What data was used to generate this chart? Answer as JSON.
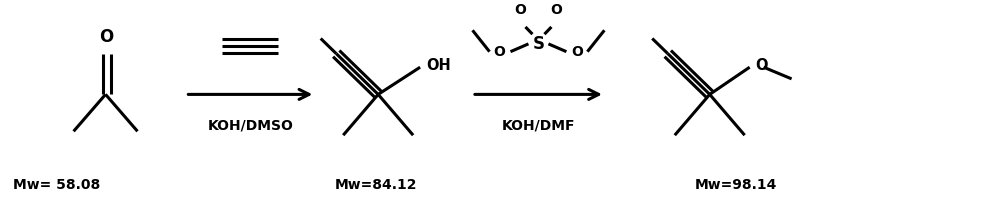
{
  "bg_color": "#ffffff",
  "text_color": "#000000",
  "mw1": "Mw= 58.08",
  "mw2": "Mw=84.12",
  "mw3": "Mw=98.14",
  "reagent1": "KOH/DMSO",
  "reagent2": "KOH/DMF",
  "line_width": 2.2,
  "font_size": 10,
  "fig_width": 10.0,
  "fig_height": 2.0,
  "dpi": 100,
  "xlim": [
    0,
    10
  ],
  "ylim": [
    0,
    2
  ]
}
